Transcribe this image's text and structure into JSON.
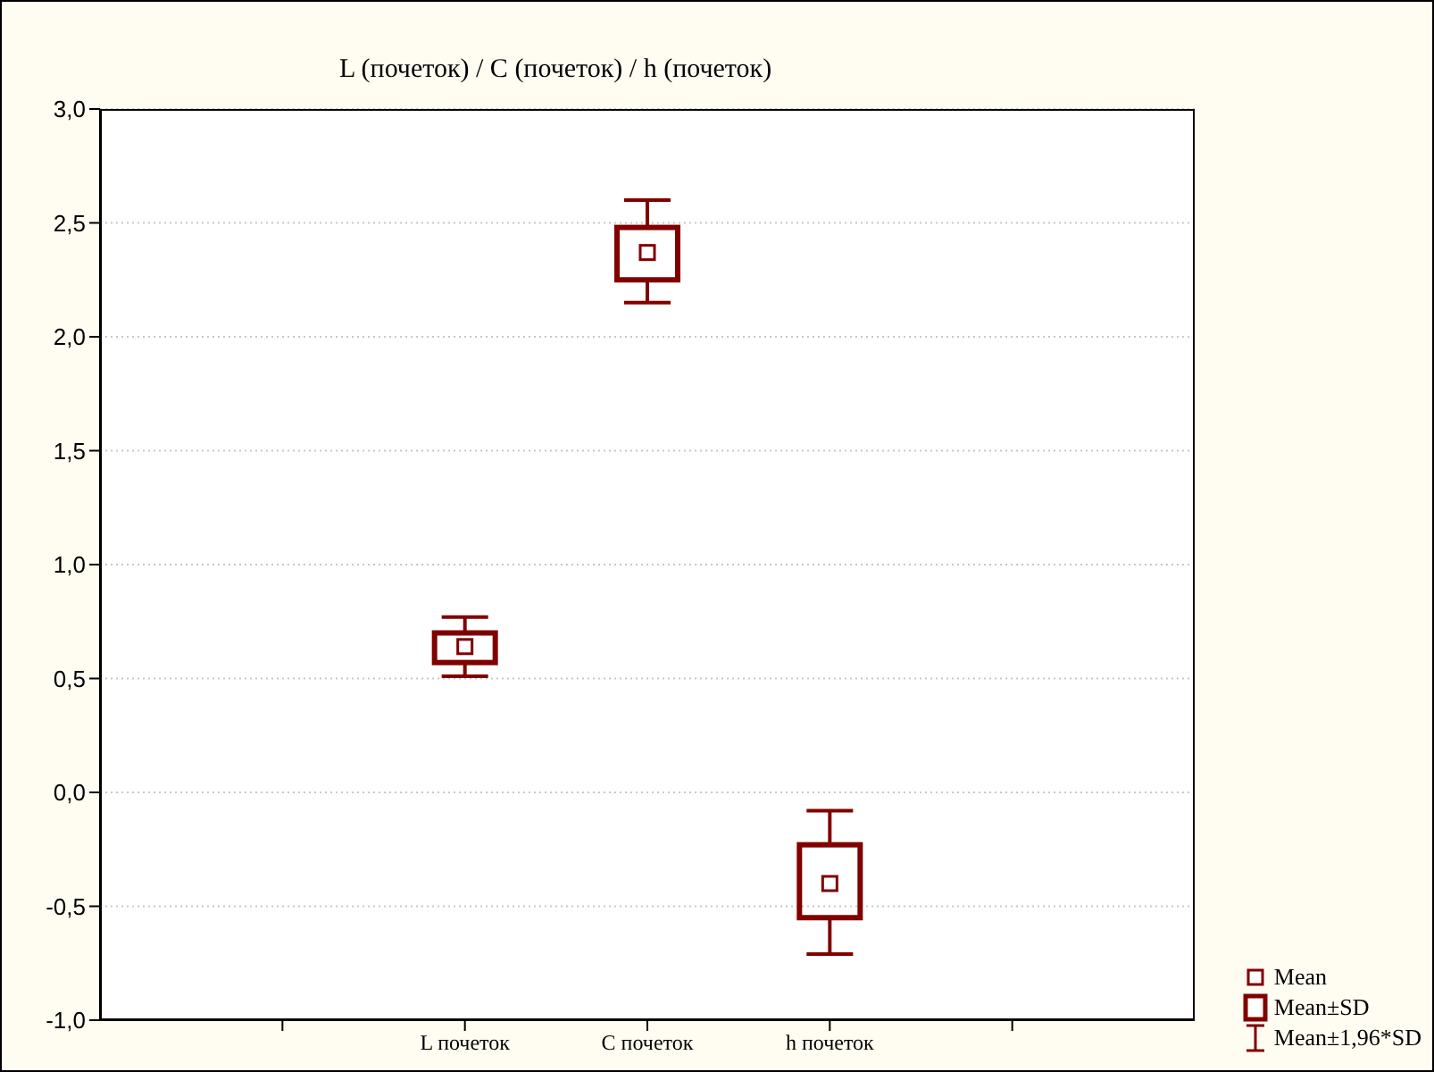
{
  "chart_data": {
    "type": "box",
    "title": "L (почеток) / C (почеток) / h (почеток)",
    "categories": [
      null,
      "L почеток",
      "C почеток",
      "h почеток",
      null
    ],
    "boxes": [
      null,
      {
        "low": 0.51,
        "q1": 0.57,
        "median": 0.64,
        "q3": 0.7,
        "high": 0.77
      },
      {
        "low": 2.15,
        "q1": 2.25,
        "median": 2.37,
        "q3": 2.48,
        "high": 2.6
      },
      {
        "low": -0.71,
        "q1": -0.55,
        "median": -0.4,
        "q3": -0.23,
        "high": -0.08
      },
      null
    ],
    "color": "#800000",
    "ylim": [
      -1,
      3
    ],
    "yticks": [
      {
        "value": -1,
        "label": "-1,0"
      },
      {
        "value": -0.5,
        "label": "-0,5"
      },
      {
        "value": 0,
        "label": "0,0"
      },
      {
        "value": 0.5,
        "label": "0,5"
      },
      {
        "value": 1,
        "label": "1,0"
      },
      {
        "value": 1.5,
        "label": "1,5"
      },
      {
        "value": 2,
        "label": "2,0"
      },
      {
        "value": 2.5,
        "label": "2,5"
      },
      {
        "value": 3,
        "label": "3,0"
      }
    ],
    "grid": "y",
    "annotations": [
      "Mean",
      "Mean±SD",
      "Mean±1,96*SD"
    ]
  }
}
